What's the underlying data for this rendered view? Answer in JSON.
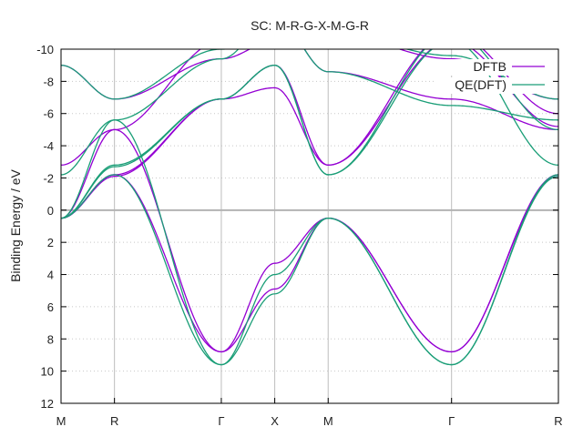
{
  "chart_data": {
    "type": "line",
    "title": "SC: M-R-G-X-M-G-R",
    "ylabel": "Binding Energy / eV",
    "xlabel": "",
    "k_path": [
      "M",
      "R",
      "Γ",
      "X",
      "M",
      "Γ",
      "R"
    ],
    "k_positions": [
      0,
      0.866,
      2.5981,
      3.4641,
      4.3301,
      6.3301,
      8.0622
    ],
    "yticks": [
      -10,
      -8,
      -6,
      -4,
      -2,
      0,
      2,
      4,
      6,
      8,
      10,
      12
    ],
    "ylim": [
      -10,
      12
    ],
    "y_axis_inverted": true,
    "fermi_level_line": 0,
    "grid": "dotted, vertical lines at high-symmetry points",
    "legend_position": "top-right",
    "colors": {
      "DFTB": "#9400d3",
      "QE(DFT)": "#1a9e77"
    },
    "series": [
      {
        "name": "DFTB",
        "params": {
          "s": 3.33,
          "t": 0.6,
          "w": 0.9
        },
        "bands": [
          [
            [
              0,
              0.5
            ],
            [
              0.866,
              -2.2
            ],
            [
              2.5981,
              -6.9
            ],
            [
              3.4641,
              -7.6
            ],
            [
              4.3301,
              -2.8
            ],
            [
              6.3301,
              -10.5
            ],
            [
              8.0622,
              -5.2
            ]
          ],
          [
            [
              0,
              0.5
            ],
            [
              0.866,
              -2.1
            ],
            [
              2.5981,
              -6.9
            ],
            [
              3.4641,
              -9.0
            ],
            [
              4.3301,
              -2.8
            ],
            [
              6.3301,
              -11.0
            ],
            [
              8.0622,
              -6.0
            ]
          ],
          [
            [
              0,
              0.5
            ],
            [
              0.866,
              -5.0
            ],
            [
              2.5981,
              8.8
            ],
            [
              3.4641,
              3.3
            ],
            [
              4.3301,
              0.5
            ],
            [
              6.3301,
              8.8
            ],
            [
              8.0622,
              -2.1
            ]
          ],
          [
            [
              0,
              0.5
            ],
            [
              0.866,
              -2.2
            ],
            [
              2.5981,
              8.8
            ],
            [
              3.4641,
              4.9
            ],
            [
              4.3301,
              0.5
            ],
            [
              6.3301,
              8.8
            ],
            [
              8.0622,
              -2.2
            ]
          ],
          [
            [
              0,
              -2.8
            ],
            [
              0.866,
              -5.0
            ],
            [
              2.5981,
              -10.5
            ],
            [
              3.4641,
              -12.0
            ],
            [
              4.3301,
              -8.6
            ],
            [
              6.3301,
              -6.9
            ],
            [
              8.0622,
              -5.0
            ]
          ],
          [
            [
              0,
              -9.0
            ],
            [
              0.866,
              -6.9
            ],
            [
              2.5981,
              -9.4
            ],
            [
              3.4641,
              -10.5
            ],
            [
              4.3301,
              -11.0
            ],
            [
              6.3301,
              -9.4
            ],
            [
              8.0622,
              -6.9
            ]
          ]
        ]
      },
      {
        "name": "QE(DFT)",
        "params": {
          "s": 3.47,
          "t": 0.6,
          "w": 0.9
        },
        "bands": [
          [
            [
              0,
              0.5
            ],
            [
              0.866,
              -2.8
            ],
            [
              2.5981,
              -6.9
            ],
            [
              3.4641,
              -9.0
            ],
            [
              4.3301,
              -2.2
            ],
            [
              6.3301,
              -10.5
            ],
            [
              8.0622,
              -2.8
            ]
          ],
          [
            [
              0,
              0.5
            ],
            [
              0.866,
              -2.7
            ],
            [
              2.5981,
              -6.9
            ],
            [
              3.4641,
              -9.0
            ],
            [
              4.3301,
              -2.2
            ],
            [
              6.3301,
              -11.0
            ],
            [
              8.0622,
              -5.0
            ]
          ],
          [
            [
              0,
              0.5
            ],
            [
              0.866,
              -5.6
            ],
            [
              2.5981,
              9.6
            ],
            [
              3.4641,
              4.0
            ],
            [
              4.3301,
              0.5
            ],
            [
              6.3301,
              9.6
            ],
            [
              8.0622,
              -2.2
            ]
          ],
          [
            [
              0,
              0.5
            ],
            [
              0.866,
              -2.2
            ],
            [
              2.5981,
              9.6
            ],
            [
              3.4641,
              5.2
            ],
            [
              4.3301,
              0.5
            ],
            [
              6.3301,
              9.6
            ],
            [
              8.0622,
              -2.1
            ]
          ],
          [
            [
              0,
              -2.2
            ],
            [
              0.866,
              -5.6
            ],
            [
              2.5981,
              -9.4
            ],
            [
              3.4641,
              -12.0
            ],
            [
              4.3301,
              -8.6
            ],
            [
              6.3301,
              -6.5
            ],
            [
              8.0622,
              -5.6
            ]
          ],
          [
            [
              0,
              -9.0
            ],
            [
              0.866,
              -6.9
            ],
            [
              2.5981,
              -10.0
            ],
            [
              3.4641,
              -10.5
            ],
            [
              4.3301,
              -11.0
            ],
            [
              6.3301,
              -9.6
            ],
            [
              8.0622,
              -6.9
            ]
          ]
        ]
      }
    ]
  }
}
